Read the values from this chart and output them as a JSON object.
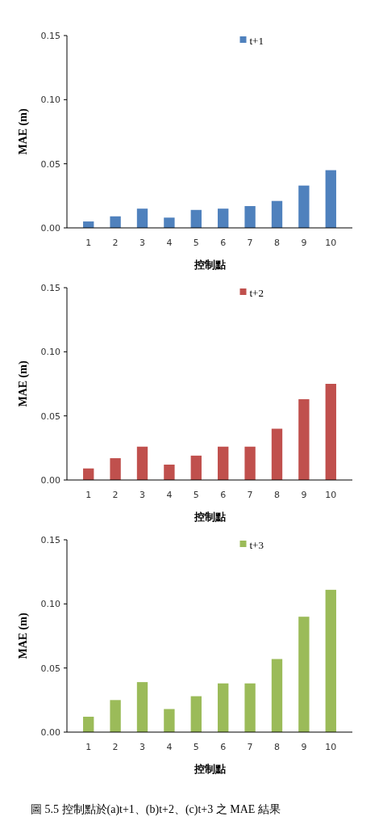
{
  "chart_data": [
    {
      "type": "bar",
      "xlabel": "控制點",
      "ylabel": "MAE (m)",
      "categories": [
        "1",
        "2",
        "3",
        "4",
        "5",
        "6",
        "7",
        "8",
        "9",
        "10"
      ],
      "series": [
        {
          "name": "t+1",
          "color": "#4f81bd",
          "values": [
            0.005,
            0.009,
            0.015,
            0.008,
            0.014,
            0.015,
            0.017,
            0.021,
            0.033,
            0.045
          ]
        }
      ],
      "ylim": [
        0,
        0.15
      ],
      "yticks": [
        {
          "value": 0,
          "label": "0.00"
        },
        {
          "value": 0.05,
          "label": "0.05"
        },
        {
          "value": 0.1,
          "label": "0.10"
        },
        {
          "value": 0.15,
          "label": "0.15"
        }
      ],
      "legend": "top",
      "grid": false
    },
    {
      "type": "bar",
      "xlabel": "控制點",
      "ylabel": "MAE (m)",
      "categories": [
        "1",
        "2",
        "3",
        "4",
        "5",
        "6",
        "7",
        "8",
        "9",
        "10"
      ],
      "series": [
        {
          "name": "t+2",
          "color": "#c0504d",
          "values": [
            0.009,
            0.017,
            0.026,
            0.012,
            0.019,
            0.026,
            0.026,
            0.04,
            0.063,
            0.075
          ]
        }
      ],
      "ylim": [
        0,
        0.15
      ],
      "yticks": [
        {
          "value": 0,
          "label": "0.00"
        },
        {
          "value": 0.05,
          "label": "0.05"
        },
        {
          "value": 0.1,
          "label": "0.10"
        },
        {
          "value": 0.15,
          "label": "0.15"
        }
      ],
      "legend": "top",
      "grid": false
    },
    {
      "type": "bar",
      "xlabel": "控制點",
      "ylabel": "MAE (m)",
      "categories": [
        "1",
        "2",
        "3",
        "4",
        "5",
        "6",
        "7",
        "8",
        "9",
        "10"
      ],
      "series": [
        {
          "name": "t+3",
          "color": "#9bbb59",
          "values": [
            0.012,
            0.025,
            0.039,
            0.018,
            0.028,
            0.038,
            0.038,
            0.057,
            0.09,
            0.111
          ]
        }
      ],
      "ylim": [
        0,
        0.15
      ],
      "yticks": [
        {
          "value": 0,
          "label": "0.00"
        },
        {
          "value": 0.05,
          "label": "0.05"
        },
        {
          "value": 0.1,
          "label": "0.10"
        },
        {
          "value": 0.15,
          "label": "0.15"
        }
      ],
      "legend": "top",
      "grid": false,
      "annotations": [
        "圖 5.5 控制點於(a)t+1、(b)t+2、(c)t+3 之 MAE 結果"
      ]
    }
  ]
}
